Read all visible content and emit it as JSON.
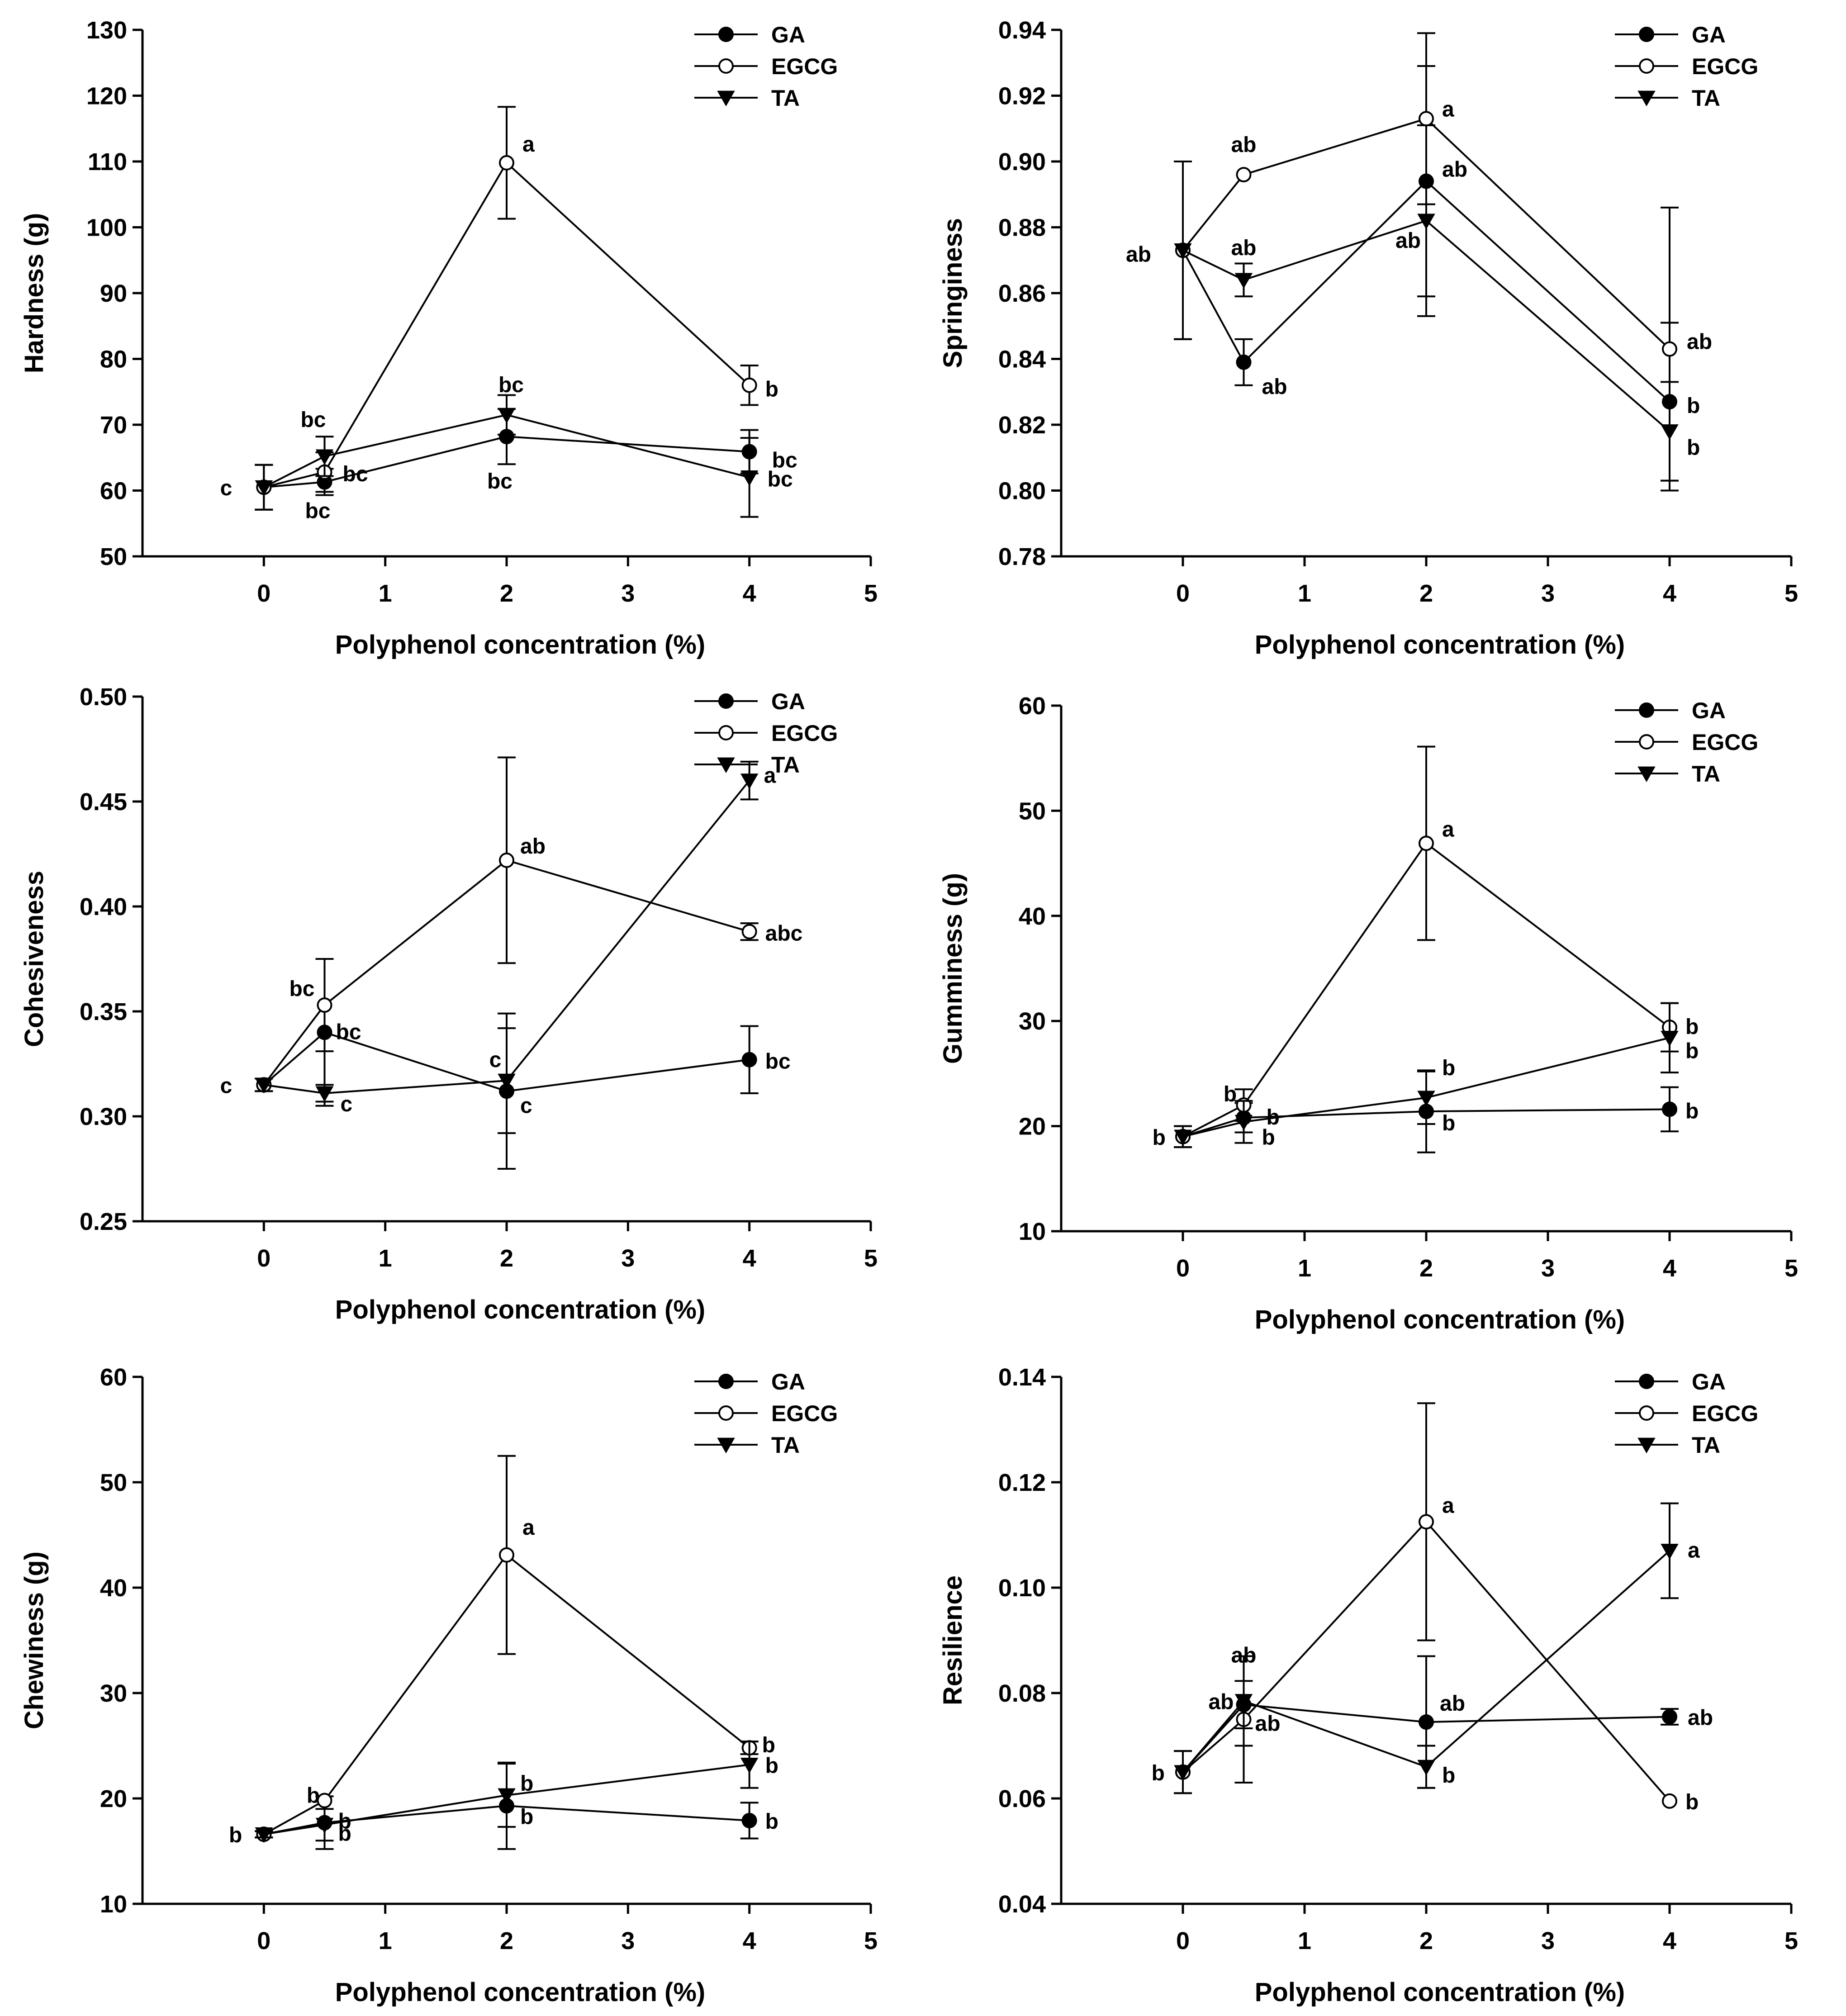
{
  "figure": {
    "series_styles": {
      "GA": {
        "marker": "filled-circle",
        "color": "#000000"
      },
      "EGCG": {
        "marker": "open-circle",
        "color": "#000000"
      },
      "TA": {
        "marker": "filled-triangle-down",
        "color": "#000000"
      }
    }
  },
  "chart_data": [
    {
      "id": "hardness",
      "type": "line",
      "xlabel": "Polyphenol concentration (%)",
      "ylabel": "Hardness (g)",
      "xlim": [
        -1,
        5
      ],
      "ylim": [
        50,
        130
      ],
      "xticks": [
        0,
        1,
        2,
        3,
        4,
        5
      ],
      "yticks": [
        50,
        60,
        70,
        80,
        90,
        100,
        110,
        120,
        130
      ],
      "ytick_labels": [
        "50",
        "60",
        "70",
        "80",
        "90",
        "100",
        "110",
        "120",
        "130"
      ],
      "legend": [
        "GA",
        "EGCG",
        "TA"
      ],
      "x": [
        0,
        0.5,
        2,
        4
      ],
      "series": [
        {
          "name": "GA",
          "values": [
            60.5,
            61.3,
            68.2,
            65.9
          ],
          "errors": [
            3.4,
            2.0,
            4.2,
            3.3
          ],
          "labels": [
            "c",
            "bc",
            "bc",
            "bc"
          ]
        },
        {
          "name": "EGCG",
          "values": [
            60.5,
            62.8,
            109.8,
            76.0
          ],
          "errors": [
            3.4,
            3.0,
            8.5,
            3.0
          ],
          "labels": [
            "",
            "bc",
            "a",
            "b"
          ]
        },
        {
          "name": "TA",
          "values": [
            60.5,
            65.2,
            71.5,
            62.0
          ],
          "errors": [
            3.4,
            3.0,
            3.0,
            6.0
          ],
          "labels": [
            "",
            "bc",
            "bc",
            "bc"
          ]
        }
      ]
    },
    {
      "id": "springiness",
      "type": "line",
      "xlabel": "Polyphenol concentration (%)",
      "ylabel": "Springiness",
      "xlim": [
        -1,
        5
      ],
      "ylim": [
        0.78,
        0.94
      ],
      "xticks": [
        0,
        1,
        2,
        3,
        4,
        5
      ],
      "yticks": [
        0.78,
        0.8,
        0.82,
        0.84,
        0.86,
        0.88,
        0.9,
        0.92,
        0.94
      ],
      "ytick_labels": [
        "0.78",
        "0.80",
        "0.82",
        "0.84",
        "0.86",
        "0.88",
        "0.90",
        "0.92",
        "0.94"
      ],
      "legend": [
        "GA",
        "EGCG",
        "TA"
      ],
      "x": [
        0,
        0.5,
        2,
        4
      ],
      "series": [
        {
          "name": "GA",
          "values": [
            0.873,
            0.839,
            0.894,
            0.827
          ],
          "errors": [
            0.027,
            0.007,
            0.035,
            0.024
          ],
          "labels": [
            "ab",
            "ab",
            "ab",
            "b"
          ]
        },
        {
          "name": "EGCG",
          "values": [
            0.873,
            0.896,
            0.913,
            0.843
          ],
          "errors": [
            0.027,
            0.0,
            0.026,
            0.043
          ],
          "labels": [
            "",
            "ab",
            "a",
            "ab"
          ]
        },
        {
          "name": "TA",
          "values": [
            0.873,
            0.864,
            0.882,
            0.818
          ],
          "errors": [
            0.027,
            0.005,
            0.029,
            0.015
          ],
          "labels": [
            "",
            "ab",
            "ab",
            "b"
          ]
        }
      ]
    },
    {
      "id": "cohesiveness",
      "type": "line",
      "xlabel": "Polyphenol concentration (%)",
      "ylabel": "Cohesiveness",
      "xlim": [
        -1,
        5
      ],
      "ylim": [
        0.25,
        0.5
      ],
      "xticks": [
        0,
        1,
        2,
        3,
        4,
        5
      ],
      "yticks": [
        0.25,
        0.3,
        0.35,
        0.4,
        0.45,
        0.5
      ],
      "ytick_labels": [
        "0.25",
        "0.30",
        "0.35",
        "0.40",
        "0.45",
        "0.50"
      ],
      "legend": [
        "GA",
        "EGCG",
        "TA"
      ],
      "x": [
        0,
        0.5,
        2,
        4
      ],
      "series": [
        {
          "name": "GA",
          "values": [
            0.315,
            0.34,
            0.312,
            0.327
          ],
          "errors": [
            0.003,
            0.035,
            0.037,
            0.016
          ],
          "labels": [
            "c",
            "bc",
            "c",
            "bc"
          ]
        },
        {
          "name": "EGCG",
          "values": [
            0.315,
            0.353,
            0.422,
            0.388
          ],
          "errors": [
            0.003,
            0.022,
            0.049,
            0.004
          ],
          "labels": [
            "",
            "bc",
            "ab",
            "abc"
          ]
        },
        {
          "name": "TA",
          "values": [
            0.315,
            0.311,
            0.317,
            0.46
          ],
          "errors": [
            0.003,
            0.004,
            0.025,
            0.009
          ],
          "labels": [
            "",
            "c",
            "c",
            "a"
          ]
        }
      ]
    },
    {
      "id": "gumminess",
      "type": "line",
      "xlabel": "Polyphenol concentration (%)",
      "ylabel": "Gumminess (g)",
      "xlim": [
        -1,
        5
      ],
      "ylim": [
        10,
        60
      ],
      "xticks": [
        0,
        1,
        2,
        3,
        4,
        5
      ],
      "yticks": [
        10,
        20,
        30,
        40,
        50,
        60
      ],
      "ytick_labels": [
        "10",
        "20",
        "30",
        "40",
        "50",
        "60"
      ],
      "legend": [
        "GA",
        "EGCG",
        "TA"
      ],
      "x": [
        0,
        0.5,
        2,
        4
      ],
      "series": [
        {
          "name": "GA",
          "values": [
            19.0,
            20.8,
            21.4,
            21.6
          ],
          "errors": [
            1.0,
            1.4,
            3.9,
            2.1
          ],
          "labels": [
            "b",
            "b",
            "b",
            "b"
          ]
        },
        {
          "name": "EGCG",
          "values": [
            19.0,
            22.0,
            46.9,
            29.4
          ],
          "errors": [
            1.0,
            1.5,
            9.2,
            2.3
          ],
          "labels": [
            "",
            "b",
            "a",
            "b"
          ]
        },
        {
          "name": "TA",
          "values": [
            19.0,
            20.4,
            22.7,
            28.4
          ],
          "errors": [
            1.0,
            2.0,
            2.5,
            3.3
          ],
          "labels": [
            "",
            "b",
            "b",
            "b"
          ]
        }
      ]
    },
    {
      "id": "chewiness",
      "type": "line",
      "xlabel": "Polyphenol concentration (%)",
      "ylabel": "Chewiness (g)",
      "xlim": [
        -1,
        5
      ],
      "ylim": [
        10,
        60
      ],
      "xticks": [
        0,
        1,
        2,
        3,
        4,
        5
      ],
      "yticks": [
        10,
        20,
        30,
        40,
        50,
        60
      ],
      "ytick_labels": [
        "10",
        "20",
        "30",
        "40",
        "50",
        "60"
      ],
      "legend": [
        "GA",
        "EGCG",
        "TA"
      ],
      "x": [
        0,
        0.5,
        2,
        4
      ],
      "series": [
        {
          "name": "GA",
          "values": [
            16.6,
            17.7,
            19.3,
            17.9
          ],
          "errors": [
            0.3,
            2.5,
            4.1,
            1.7
          ],
          "labels": [
            "b",
            "b",
            "b",
            "b"
          ]
        },
        {
          "name": "EGCG",
          "values": [
            16.6,
            19.8,
            43.1,
            24.8
          ],
          "errors": [
            0.3,
            0.0,
            9.4,
            0.6
          ],
          "labels": [
            "",
            "b",
            "a",
            "b"
          ]
        },
        {
          "name": "TA",
          "values": [
            16.6,
            17.5,
            20.3,
            23.2
          ],
          "errors": [
            0.3,
            1.5,
            3.0,
            2.2
          ],
          "labels": [
            "",
            "b",
            "b",
            "b"
          ]
        }
      ]
    },
    {
      "id": "resilience",
      "type": "line",
      "xlabel": "Polyphenol concentration (%)",
      "ylabel": "Resilience",
      "xlim": [
        -1,
        5
      ],
      "ylim": [
        0.04,
        0.14
      ],
      "xticks": [
        0,
        1,
        2,
        3,
        4,
        5
      ],
      "yticks": [
        0.04,
        0.06,
        0.08,
        0.1,
        0.12,
        0.14
      ],
      "ytick_labels": [
        "0.04",
        "0.06",
        "0.08",
        "0.10",
        "0.12",
        "0.14"
      ],
      "legend": [
        "GA",
        "EGCG",
        "TA"
      ],
      "x": [
        0,
        0.5,
        2,
        4
      ],
      "series": [
        {
          "name": "GA",
          "values": [
            0.065,
            0.0778,
            0.0745,
            0.0755
          ],
          "errors": [
            0.004,
            0.0045,
            0.0125,
            0.0015
          ],
          "labels": [
            "b",
            "ab",
            "ab",
            "ab"
          ]
        },
        {
          "name": "EGCG",
          "values": [
            0.065,
            0.075,
            0.1125,
            0.0595
          ],
          "errors": [
            0.004,
            0.012,
            0.0225,
            0.0
          ],
          "labels": [
            "",
            "ab",
            "a",
            "b"
          ]
        },
        {
          "name": "TA",
          "values": [
            0.065,
            0.0785,
            0.066,
            0.107
          ],
          "errors": [
            0.004,
            0.0085,
            0.004,
            0.009
          ],
          "labels": [
            "",
            "ab",
            "b",
            "a"
          ]
        }
      ]
    }
  ]
}
